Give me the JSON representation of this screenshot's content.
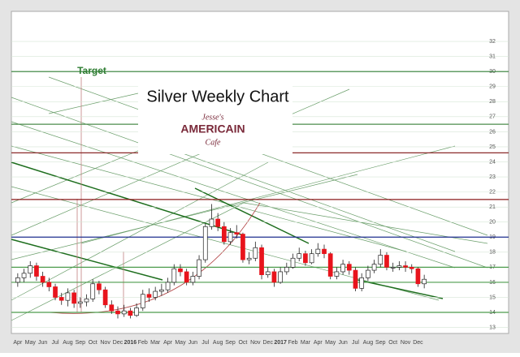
{
  "chart_data": {
    "type": "candlestick",
    "title": "Silver Weekly Chart",
    "logo": {
      "top": "Jesse's",
      "middle": "AMERICAIN",
      "bottom": "Cafe"
    },
    "annotation": "Target",
    "categories": [
      "Apr",
      null,
      "May",
      null,
      "Jun",
      null,
      "Jul",
      null,
      "Aug",
      null,
      "Sep",
      null,
      "Oct",
      null,
      "Nov",
      null,
      "Dec",
      null,
      "2016",
      null,
      "Feb",
      null,
      "Mar",
      null,
      "Apr",
      null,
      "May",
      null,
      "Jun",
      null,
      "Jul",
      null,
      "Aug",
      null,
      "Sep",
      null,
      "Oct",
      null,
      "Nov",
      null,
      "Dec",
      null,
      "2017",
      null,
      "Feb",
      null,
      "Mar",
      null,
      "Apr",
      null,
      "May",
      null,
      "Jun",
      null,
      "Jul",
      null,
      "Aug",
      null,
      "Sep",
      null,
      "Oct",
      null,
      "Nov",
      null,
      "Dec",
      null
    ],
    "open": [
      16.0,
      16.3,
      16.6,
      17.1,
      16.4,
      16.0,
      15.7,
      15.0,
      14.8,
      15.3,
      14.6,
      14.7,
      14.9,
      15.9,
      15.5,
      14.5,
      14.1,
      13.9,
      14.1,
      13.8,
      14.3,
      15.2,
      15.0,
      15.4,
      15.5,
      16.0,
      16.9,
      16.7,
      16.0,
      16.4,
      17.5,
      19.7,
      20.2,
      19.7,
      18.7,
      19.3,
      19.2,
      17.5,
      17.6,
      18.3,
      16.5,
      16.7,
      16.0,
      16.7,
      17.0,
      17.6,
      17.9,
      17.3,
      17.9,
      18.2,
      17.9,
      16.4,
      16.7,
      17.2,
      16.8,
      15.6,
      16.3,
      16.8,
      17.2,
      17.8,
      17.0,
      17.0,
      17.1,
      17.0,
      16.9,
      15.9
    ],
    "high": [
      16.6,
      16.9,
      17.4,
      17.3,
      16.7,
      16.3,
      15.9,
      15.3,
      15.6,
      15.5,
      15.0,
      15.2,
      16.2,
      16.1,
      15.7,
      14.8,
      14.4,
      14.5,
      14.3,
      14.6,
      15.5,
      15.6,
      15.7,
      15.9,
      16.3,
      17.2,
      17.2,
      16.9,
      16.7,
      17.8,
      19.9,
      21.2,
      20.6,
      20.0,
      19.6,
      19.8,
      19.3,
      18.0,
      18.7,
      18.5,
      17.0,
      16.9,
      17.0,
      17.3,
      17.9,
      18.3,
      18.1,
      18.2,
      18.6,
      18.5,
      18.0,
      17.0,
      17.5,
      17.4,
      17.0,
      16.6,
      17.1,
      17.5,
      18.2,
      18.0,
      17.3,
      17.4,
      17.4,
      17.2,
      17.0,
      16.5
    ],
    "low": [
      15.7,
      16.0,
      16.3,
      16.1,
      15.7,
      15.4,
      14.8,
      14.5,
      14.4,
      14.3,
      14.3,
      14.4,
      14.7,
      15.2,
      14.3,
      13.9,
      13.6,
      13.7,
      13.6,
      13.7,
      14.1,
      14.7,
      14.8,
      15.1,
      15.3,
      15.8,
      16.4,
      15.8,
      15.8,
      16.2,
      17.3,
      19.5,
      19.4,
      18.5,
      18.5,
      18.9,
      17.3,
      17.2,
      17.4,
      16.2,
      16.3,
      15.7,
      15.9,
      16.5,
      16.9,
      17.4,
      17.1,
      17.2,
      17.7,
      17.6,
      16.2,
      16.2,
      16.5,
      16.5,
      15.4,
      15.4,
      16.1,
      16.6,
      17.0,
      16.8,
      16.7,
      16.8,
      16.7,
      16.6,
      15.7,
      15.6
    ],
    "close": [
      16.3,
      16.6,
      17.1,
      16.4,
      16.0,
      15.7,
      15.0,
      14.8,
      15.3,
      14.6,
      14.7,
      14.9,
      15.9,
      15.5,
      14.5,
      14.1,
      13.9,
      14.1,
      13.8,
      14.3,
      15.2,
      15.0,
      15.4,
      15.5,
      16.0,
      16.9,
      16.7,
      16.0,
      16.4,
      17.5,
      19.7,
      20.2,
      19.7,
      18.7,
      19.3,
      19.2,
      17.5,
      17.6,
      18.3,
      16.5,
      16.7,
      16.0,
      16.7,
      17.0,
      17.6,
      17.9,
      17.3,
      17.9,
      18.2,
      17.9,
      16.4,
      16.7,
      17.2,
      16.8,
      15.6,
      16.3,
      16.8,
      17.2,
      17.8,
      17.0,
      17.0,
      17.1,
      17.0,
      16.9,
      15.9,
      16.2
    ],
    "up_color": "#ffffff",
    "down_color": "#e8141c",
    "levels": [
      {
        "value": 30,
        "color": "#2e7d32"
      },
      {
        "value": 26.5,
        "color": "#4c8c4c"
      },
      {
        "value": 24.6,
        "color": "#8b2a2a"
      },
      {
        "value": 21.5,
        "color": "#8b1a1a"
      },
      {
        "value": 19,
        "color": "#1f2f8f"
      },
      {
        "value": 17,
        "color": "#4c9c4c"
      },
      {
        "value": 16,
        "color": "#4c9c4c"
      },
      {
        "value": 14,
        "color": "#4c9c4c"
      }
    ],
    "ylim": [
      12.6,
      34
    ],
    "yticks": [
      13,
      14,
      15,
      16,
      17,
      18,
      19,
      20,
      21,
      22,
      23,
      24,
      25,
      26,
      27,
      28,
      29,
      30,
      31,
      32
    ]
  }
}
